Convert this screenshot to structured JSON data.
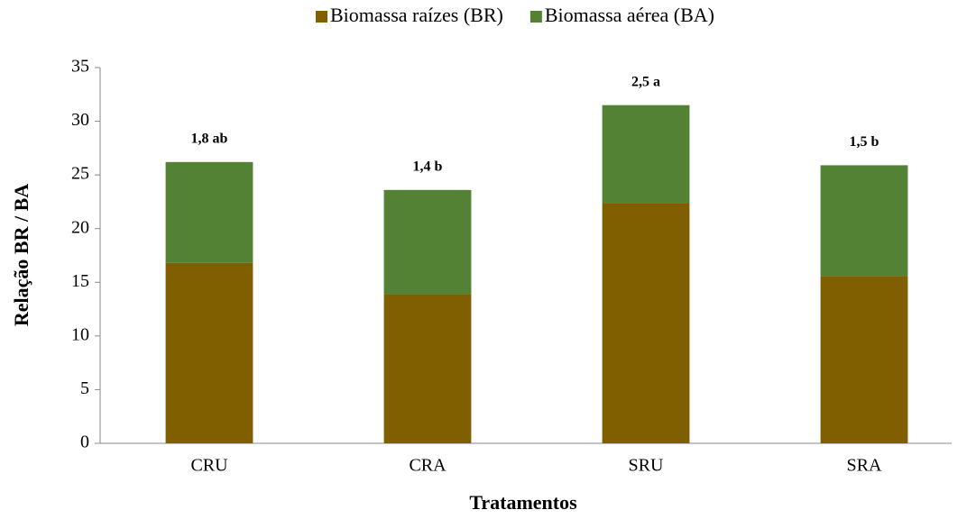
{
  "chart_data": {
    "type": "stacked_bar",
    "categories": [
      "CRU",
      "CRA",
      "SRU",
      "SRA"
    ],
    "series": [
      {
        "name": "Biomassa raízes (BR)",
        "color": "#7f5f00",
        "values": [
          16.8,
          13.9,
          22.4,
          15.6
        ]
      },
      {
        "name": "Biomassa aérea (BA)",
        "color": "#548235",
        "values": [
          9.4,
          9.7,
          9.1,
          10.3
        ]
      }
    ],
    "annotations": [
      "1,8 ab",
      "1,4 b",
      "2,5 a",
      "1,5 b"
    ],
    "xlabel": "Tratamentos",
    "ylabel": "Relação BR / BA",
    "ylim": [
      0,
      35
    ],
    "yticks": [
      0,
      5,
      10,
      15,
      20,
      25,
      30,
      35
    ],
    "legend": "top"
  }
}
